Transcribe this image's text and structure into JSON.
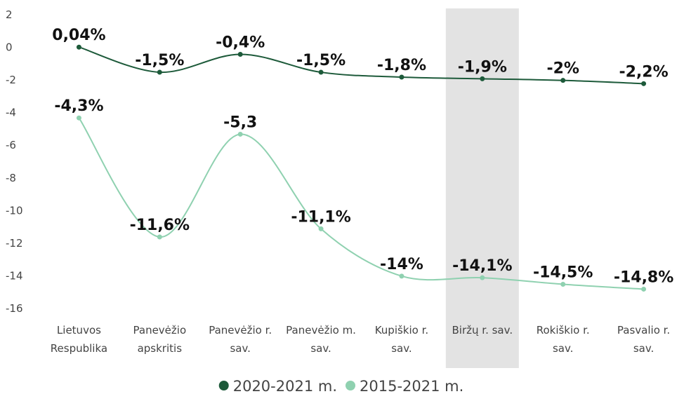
{
  "chart_data": {
    "type": "line",
    "categories": [
      "Lietuvos Respublika",
      "Panevėžio apskritis",
      "Panevėžio r. sav.",
      "Panevėžio m. sav.",
      "Kupiškio r. sav.",
      "Biržų r. sav.",
      "Rokiškio r. sav.",
      "Pasvalio r. sav."
    ],
    "highlight_index": 5,
    "series": [
      {
        "name": "2020-2021 m.",
        "color": "#1d5a3a",
        "values": [
          0.04,
          -1.5,
          -0.4,
          -1.5,
          -1.8,
          -1.9,
          -2,
          -2.2
        ],
        "value_labels": [
          "0,04%",
          "-1,5%",
          "-0,4%",
          "-1,5%",
          "-1,8%",
          "-1,9%",
          "-2%",
          "-2,2%"
        ]
      },
      {
        "name": "2015-2021 m.",
        "color": "#8fd1b0",
        "values": [
          -4.3,
          -11.6,
          -5.3,
          -11.1,
          -14,
          -14.1,
          -14.5,
          -14.8
        ],
        "value_labels": [
          "-4,3%",
          "-11,6%",
          "-5,3",
          "-11,1%",
          "-14%",
          "-14,1%",
          "-14,5%",
          "-14,8%"
        ]
      }
    ],
    "ylim": [
      -16.5,
      2.5
    ],
    "yticks": [
      2,
      0,
      -2,
      -4,
      -6,
      -8,
      -10,
      -12,
      -14,
      -16
    ],
    "legend": "bottom"
  }
}
